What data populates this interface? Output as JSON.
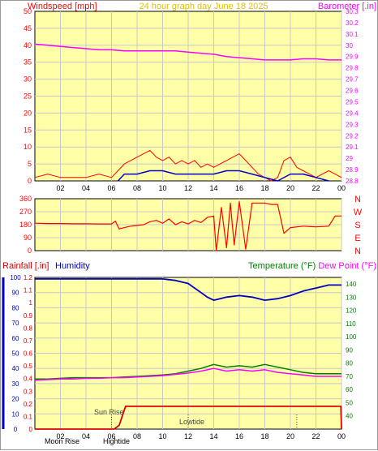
{
  "header": {
    "windspeed_label": "Windspeed [mph]",
    "title": "24 hour graph day   June 18 2025",
    "barometer_label": "Barometer [.in]"
  },
  "colors": {
    "plot_bg": "#ffffa8",
    "grid": "#c8c8c8",
    "axis": "#000000",
    "windspeed": "#ff0000",
    "gust": "#0000cc",
    "wind_green": "#008000",
    "barometer": "#ff00ff",
    "direction": "#ff0000",
    "humidity": "#0000c0",
    "temperature": "#008000",
    "dewpoint": "#ff00ff",
    "rainfall": "#dd0000",
    "title_color": "#e0c000"
  },
  "chart_data": [
    {
      "type": "line",
      "title": "24 hour graph day   June 18 2025",
      "xlabel": "",
      "x_tick_labels": [
        "02",
        "04",
        "06",
        "08",
        "10",
        "12",
        "14",
        "16",
        "18",
        "20",
        "22",
        "00"
      ],
      "ylabel_left": "Windspeed [mph]",
      "ylim_left": [
        0,
        50
      ],
      "y_ticks_left": [
        "0",
        "5",
        "10",
        "15",
        "20",
        "25",
        "30",
        "35",
        "40",
        "45",
        "50"
      ],
      "ylabel_right": "Barometer [.in]",
      "ylim_right": [
        28.8,
        30.3
      ],
      "y_ticks_right": [
        "28.8",
        "28.9",
        "29",
        "29.1",
        "29.2",
        "29.3",
        "29.4",
        "29.5",
        "29.6",
        "29.7",
        "29.8",
        "29.9",
        "30",
        "30.1",
        "30.2",
        "30.3"
      ],
      "grid": true,
      "series": [
        {
          "axis": "right",
          "x": [
            0,
            1,
            2,
            3,
            4,
            5,
            6,
            7,
            8,
            9,
            10,
            11,
            12,
            13,
            14,
            15,
            16,
            17,
            18,
            19,
            20,
            21,
            22,
            23,
            24
          ],
          "values": [
            30.01,
            30.0,
            29.99,
            29.98,
            29.97,
            29.96,
            29.96,
            29.95,
            29.95,
            29.95,
            29.95,
            29.95,
            29.94,
            29.93,
            29.92,
            29.9,
            29.89,
            29.88,
            29.87,
            29.87,
            29.87,
            29.88,
            29.88,
            29.87,
            29.87
          ]
        },
        {
          "axis": "left",
          "x": [
            0,
            1,
            2,
            3,
            4,
            5,
            6,
            6.5,
            7,
            7.5,
            8,
            8.5,
            9,
            9.5,
            10,
            10.5,
            11,
            11.5,
            12,
            12.5,
            13,
            13.5,
            14,
            14.5,
            15,
            15.5,
            16,
            16.5,
            17,
            17.5,
            18,
            18.5,
            19,
            19.5,
            20,
            20.5,
            21,
            21.5,
            22,
            22.5,
            23,
            23.5,
            24
          ],
          "values": [
            1,
            2,
            1,
            1,
            1,
            2,
            1,
            3,
            5,
            6,
            7,
            8,
            9,
            7,
            6,
            7,
            5,
            6,
            5,
            6,
            4,
            5,
            4,
            5,
            6,
            7,
            8,
            6,
            4,
            2,
            1,
            0,
            1,
            6,
            7,
            4,
            3,
            2,
            1,
            2,
            3,
            2,
            1
          ]
        },
        {
          "axis": "left",
          "x": [
            6.5,
            7,
            8,
            9,
            10,
            11,
            12,
            13,
            14,
            15,
            16,
            17,
            18,
            19,
            20,
            21,
            22,
            23
          ],
          "values": [
            0,
            2,
            2,
            3,
            3,
            2,
            2,
            2,
            2,
            3,
            3,
            2,
            1,
            0,
            2,
            2,
            1,
            0
          ]
        }
      ]
    },
    {
      "type": "line",
      "xlabel": "",
      "ylim_left": [
        0,
        360
      ],
      "y_ticks_left": [
        "0",
        "90",
        "180",
        "270",
        "360"
      ],
      "direction_labels_right": [
        "N",
        "W",
        "S",
        "E",
        "N"
      ],
      "grid": true,
      "series": [
        {
          "axis": "left",
          "x": [
            0,
            1,
            2,
            3,
            4,
            5,
            6,
            6.3,
            6.6,
            7,
            7.5,
            8,
            8.5,
            9,
            9.5,
            10,
            10.5,
            11,
            11.5,
            12,
            12.5,
            13,
            13.5,
            14,
            14.2,
            14.6,
            15,
            15.3,
            15.6,
            16,
            16.5,
            17,
            17.5,
            18,
            18.5,
            19,
            19.5,
            20,
            21,
            22,
            23,
            23.5,
            24
          ],
          "values": [
            190,
            188,
            188,
            186,
            187,
            185,
            185,
            205,
            150,
            160,
            170,
            175,
            180,
            200,
            210,
            190,
            220,
            180,
            200,
            185,
            210,
            195,
            230,
            240,
            0,
            300,
            20,
            330,
            40,
            340,
            10,
            330,
            330,
            330,
            320,
            320,
            120,
            160,
            170,
            165,
            170,
            240,
            240
          ]
        }
      ]
    },
    {
      "type": "line",
      "xlabel": "",
      "x_tick_labels": [
        "02",
        "04",
        "06",
        "08",
        "10",
        "12",
        "14",
        "16",
        "18",
        "20",
        "22",
        "00"
      ],
      "ylabel_left": "Rainfall [.in]",
      "ylim_left": [
        0,
        1.2
      ],
      "y_ticks_left": [
        "0",
        "0.1",
        "0.2",
        "0.3",
        "0.4",
        "0.5",
        "0.6",
        "0.7",
        "0.8",
        "0.9",
        "1",
        "1.1",
        "1.2"
      ],
      "ylabel_left2": "Humidity",
      "ylim_left2": [
        0,
        100
      ],
      "y_ticks_left2": [
        "0",
        "10",
        "20",
        "30",
        "40",
        "50",
        "60",
        "70",
        "80",
        "90",
        "100"
      ],
      "ylabel_right": "Temperature (°F) Dew Point (°F)",
      "ylim_right": [
        30,
        145
      ],
      "y_ticks_right": [
        "40",
        "50",
        "60",
        "70",
        "80",
        "90",
        "100",
        "110",
        "120",
        "130",
        "140"
      ],
      "grid": true,
      "annotations": [
        "Sun Rise",
        "Lowtide",
        "Moon Rise",
        "Hightide"
      ],
      "series": [
        {
          "name": "Humidity",
          "axis": "left2",
          "x": [
            0,
            1,
            2,
            3,
            4,
            5,
            6,
            7,
            8,
            9,
            10,
            11,
            12,
            12.5,
            13,
            13.5,
            14,
            14.5,
            15,
            16,
            17,
            18,
            19,
            20,
            21,
            22,
            23,
            24
          ],
          "values": [
            99,
            99,
            99,
            99,
            99,
            99,
            99,
            99,
            99,
            99,
            99,
            98,
            96,
            93,
            90,
            87,
            85,
            86,
            87,
            88,
            87,
            85,
            86,
            88,
            91,
            93,
            95,
            95
          ]
        },
        {
          "name": "Temperature (°F)",
          "axis": "right",
          "x": [
            0,
            1,
            2,
            3,
            4,
            5,
            6,
            7,
            8,
            9,
            10,
            11,
            12,
            13,
            14,
            15,
            16,
            17,
            18,
            19,
            20,
            21,
            22,
            23,
            24
          ],
          "values": [
            68,
            68,
            68.5,
            69,
            69,
            69,
            69,
            69.5,
            70,
            70.5,
            71,
            72,
            74,
            76,
            79,
            77,
            78,
            77,
            79,
            77,
            75,
            73,
            72,
            72,
            72
          ]
        },
        {
          "name": "Dew Point (°F)",
          "axis": "right",
          "x": [
            0,
            1,
            2,
            3,
            4,
            5,
            6,
            7,
            8,
            9,
            10,
            11,
            12,
            13,
            14,
            15,
            16,
            17,
            18,
            19,
            20,
            21,
            22,
            23,
            24
          ],
          "values": [
            67,
            67.5,
            68,
            68,
            68.5,
            68.5,
            69,
            69,
            69.5,
            70,
            70.5,
            71.5,
            72.5,
            74,
            76,
            74,
            75,
            74,
            75,
            73,
            72,
            71,
            70,
            70,
            70
          ]
        },
        {
          "name": "Rainfall [.in]",
          "axis": "left",
          "x": [
            0,
            5.8,
            6.2,
            6.6,
            7.1,
            8,
            12,
            16,
            20,
            23.95,
            24
          ],
          "values": [
            0,
            0,
            0,
            0.03,
            0.18,
            0.18,
            0.18,
            0.18,
            0.18,
            0.18,
            0
          ]
        }
      ]
    }
  ]
}
